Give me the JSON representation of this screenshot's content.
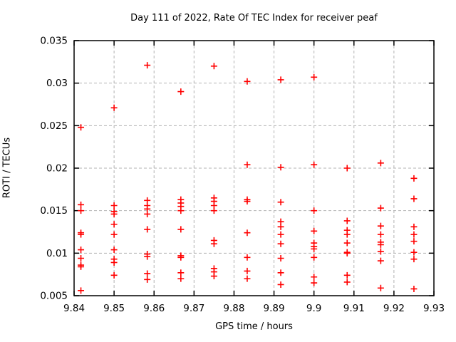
{
  "chart": {
    "title": "Day 111 of 2022, Rate Of TEC Index for receiver peaf",
    "xlabel": "GPS time / hours",
    "ylabel": "ROTI / TECUs"
  },
  "chart_data": {
    "type": "scatter",
    "title": "Day 111 of 2022, Rate Of TEC Index for receiver peaf",
    "xlabel": "GPS time / hours",
    "ylabel": "ROTI / TECUs",
    "xlim": [
      9.84,
      9.93
    ],
    "ylim": [
      0.005,
      0.035
    ],
    "xticks": [
      9.84,
      9.85,
      9.86,
      9.87,
      9.88,
      9.89,
      9.9,
      9.91,
      9.92,
      9.93
    ],
    "xtick_labels": [
      "9.84",
      "9.85",
      "9.86",
      "9.87",
      "9.88",
      "9.89",
      "9.9",
      "9.91",
      "9.92",
      "9.93"
    ],
    "yticks": [
      0.005,
      0.01,
      0.015,
      0.02,
      0.025,
      0.03,
      0.035
    ],
    "ytick_labels": [
      "0.005",
      "0.01",
      "0.015",
      "0.02",
      "0.025",
      "0.03",
      "0.035"
    ],
    "grid": {
      "show": true,
      "style": "dashed",
      "color": "#b3b3b3"
    },
    "legend": false,
    "background": "#ffffff",
    "border_color": "#000000",
    "marker": {
      "symbol": "plus",
      "color": "#ff0000",
      "size": 9
    },
    "series": [
      {
        "name": "ROTI",
        "points": [
          [
            9.8417,
            0.0248
          ],
          [
            9.8417,
            0.0157
          ],
          [
            9.8417,
            0.015
          ],
          [
            9.8417,
            0.0124
          ],
          [
            9.8417,
            0.0122
          ],
          [
            9.8417,
            0.0104
          ],
          [
            9.8417,
            0.0094
          ],
          [
            9.8417,
            0.0086
          ],
          [
            9.8417,
            0.0084
          ],
          [
            9.8417,
            0.0056
          ],
          [
            9.85,
            0.0271
          ],
          [
            9.85,
            0.0156
          ],
          [
            9.85,
            0.0149
          ],
          [
            9.85,
            0.0146
          ],
          [
            9.85,
            0.0134
          ],
          [
            9.85,
            0.0122
          ],
          [
            9.85,
            0.0104
          ],
          [
            9.85,
            0.0093
          ],
          [
            9.85,
            0.0089
          ],
          [
            9.85,
            0.0074
          ],
          [
            9.8583,
            0.0321
          ],
          [
            9.8583,
            0.0162
          ],
          [
            9.8583,
            0.0156
          ],
          [
            9.8583,
            0.0152
          ],
          [
            9.8583,
            0.0146
          ],
          [
            9.8583,
            0.0128
          ],
          [
            9.8583,
            0.0099
          ],
          [
            9.8583,
            0.0096
          ],
          [
            9.8583,
            0.0076
          ],
          [
            9.8583,
            0.0069
          ],
          [
            9.8667,
            0.029
          ],
          [
            9.8667,
            0.0163
          ],
          [
            9.8667,
            0.0159
          ],
          [
            9.8667,
            0.0155
          ],
          [
            9.8667,
            0.015
          ],
          [
            9.8667,
            0.0128
          ],
          [
            9.8667,
            0.0097
          ],
          [
            9.8667,
            0.0095
          ],
          [
            9.8667,
            0.0077
          ],
          [
            9.8667,
            0.007
          ],
          [
            9.875,
            0.032
          ],
          [
            9.875,
            0.0165
          ],
          [
            9.875,
            0.0161
          ],
          [
            9.875,
            0.0156
          ],
          [
            9.875,
            0.015
          ],
          [
            9.875,
            0.0115
          ],
          [
            9.875,
            0.0111
          ],
          [
            9.875,
            0.0082
          ],
          [
            9.875,
            0.0078
          ],
          [
            9.875,
            0.0073
          ],
          [
            9.8833,
            0.0302
          ],
          [
            9.8833,
            0.0204
          ],
          [
            9.8833,
            0.0163
          ],
          [
            9.8833,
            0.0161
          ],
          [
            9.8833,
            0.0124
          ],
          [
            9.8833,
            0.0095
          ],
          [
            9.8833,
            0.0079
          ],
          [
            9.8833,
            0.007
          ],
          [
            9.8917,
            0.0304
          ],
          [
            9.8917,
            0.0201
          ],
          [
            9.8917,
            0.016
          ],
          [
            9.8917,
            0.0137
          ],
          [
            9.8917,
            0.0131
          ],
          [
            9.8917,
            0.0122
          ],
          [
            9.8917,
            0.0111
          ],
          [
            9.8917,
            0.0094
          ],
          [
            9.8917,
            0.0077
          ],
          [
            9.8917,
            0.0063
          ],
          [
            9.9,
            0.0307
          ],
          [
            9.9,
            0.0204
          ],
          [
            9.9,
            0.015
          ],
          [
            9.9,
            0.0126
          ],
          [
            9.9,
            0.0112
          ],
          [
            9.9,
            0.0108
          ],
          [
            9.9,
            0.0105
          ],
          [
            9.9,
            0.0095
          ],
          [
            9.9,
            0.0072
          ],
          [
            9.9,
            0.0065
          ],
          [
            9.9083,
            0.02
          ],
          [
            9.9083,
            0.0138
          ],
          [
            9.9083,
            0.0127
          ],
          [
            9.9083,
            0.0122
          ],
          [
            9.9083,
            0.0112
          ],
          [
            9.9083,
            0.0101
          ],
          [
            9.9083,
            0.01
          ],
          [
            9.9083,
            0.0074
          ],
          [
            9.9083,
            0.0066
          ],
          [
            9.9167,
            0.0206
          ],
          [
            9.9167,
            0.0153
          ],
          [
            9.9167,
            0.0132
          ],
          [
            9.9167,
            0.0122
          ],
          [
            9.9167,
            0.0113
          ],
          [
            9.9167,
            0.011
          ],
          [
            9.9167,
            0.0102
          ],
          [
            9.9167,
            0.0091
          ],
          [
            9.9167,
            0.0059
          ],
          [
            9.925,
            0.0188
          ],
          [
            9.925,
            0.0164
          ],
          [
            9.925,
            0.0131
          ],
          [
            9.925,
            0.0122
          ],
          [
            9.925,
            0.0114
          ],
          [
            9.925,
            0.0101
          ],
          [
            9.925,
            0.0093
          ],
          [
            9.925,
            0.0058
          ]
        ]
      }
    ]
  }
}
